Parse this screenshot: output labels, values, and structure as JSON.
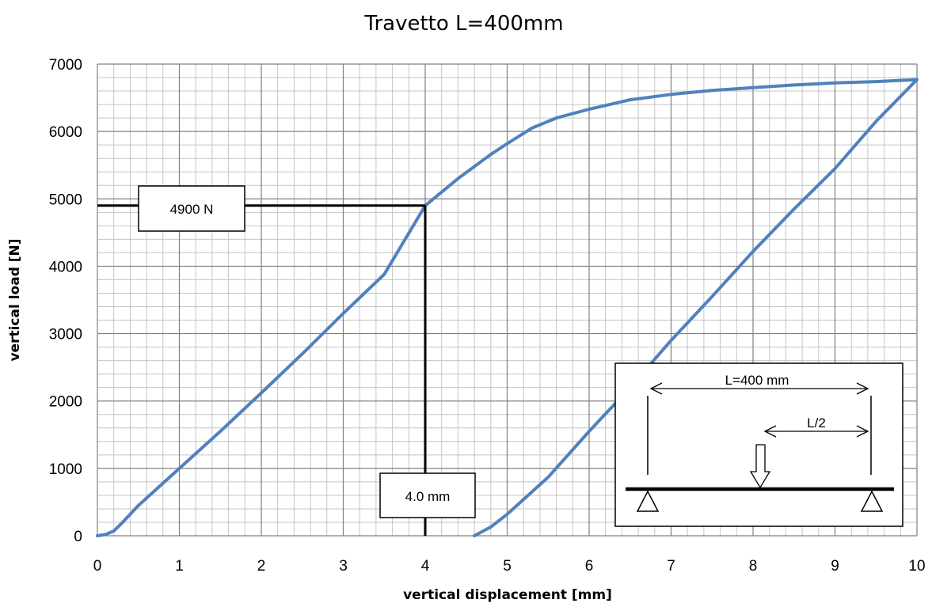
{
  "chart_data": {
    "type": "line",
    "title": "Travetto L=400mm",
    "xlabel": "vertical displacement [mm]",
    "ylabel": "vertical load [N]",
    "xlim": [
      0,
      10
    ],
    "ylim": [
      0,
      7000
    ],
    "x_ticks": [
      "0",
      "1",
      "2",
      "3",
      "4",
      "5",
      "6",
      "7",
      "8",
      "9",
      "10"
    ],
    "y_ticks": [
      "0",
      "1000",
      "2000",
      "3000",
      "4000",
      "5000",
      "6000",
      "7000"
    ],
    "grid": "major and minor",
    "series": [
      {
        "color": "#4f81bd",
        "x": [
          0,
          0.1,
          0.2,
          0.3,
          0.5,
          1.0,
          1.5,
          2.0,
          2.5,
          3.0,
          3.5,
          4.0,
          4.4,
          4.8,
          5.0,
          5.3,
          5.6,
          6.0,
          6.5,
          7.0,
          7.5,
          8.0,
          8.5,
          9.0,
          9.5,
          10.0,
          9.5,
          9.0,
          8.5,
          8.0,
          7.5,
          7.0,
          6.5,
          6.0,
          5.5,
          5.0,
          4.8,
          4.6
        ],
        "y": [
          0,
          20,
          70,
          190,
          450,
          1000,
          1550,
          2120,
          2700,
          3300,
          3880,
          4900,
          5300,
          5660,
          5820,
          6050,
          6200,
          6330,
          6470,
          6550,
          6610,
          6650,
          6690,
          6720,
          6740,
          6770,
          6150,
          5450,
          4850,
          4220,
          3550,
          2900,
          2200,
          1550,
          870,
          320,
          130,
          0
        ]
      }
    ],
    "annotations": {
      "load_label": "4900 N",
      "load_value": 4900,
      "disp_label": "4.0 mm",
      "disp_value": 4.0
    },
    "inset": {
      "length_label": "L=400 mm",
      "half_label": "L/2"
    }
  }
}
